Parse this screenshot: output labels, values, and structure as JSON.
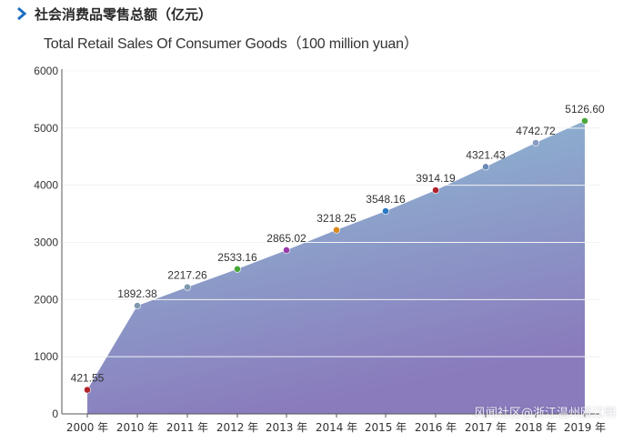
{
  "header": {
    "title_cn": "社会消费品零售总额（亿元）",
    "title_en": "Total Retail Sales Of Consumer Goods（100 million yuan）"
  },
  "watermark": "风闻社区@浙江温州瓯江明",
  "colors": {
    "arrow": "#1f6fc4",
    "area_top": "#8ec3d6",
    "area_bottom": "#8a7bbd",
    "grid": "#ffffff",
    "axis": "#555555"
  },
  "chart_data": {
    "type": "area",
    "title": "Total Retail Sales Of Consumer Goods（100 million yuan）",
    "categories": [
      "2000 年",
      "2010 年",
      "2011 年",
      "2012 年",
      "2013 年",
      "2014 年",
      "2015 年",
      "2016 年",
      "2017 年",
      "2018 年",
      "2019 年"
    ],
    "values": [
      421.55,
      1892.38,
      2217.26,
      2533.16,
      2865.02,
      3218.25,
      3548.16,
      3914.19,
      4321.43,
      4742.72,
      5126.6
    ],
    "labels": [
      "421.55",
      "1892.38",
      "2217.26",
      "2533.16",
      "2865.02",
      "3218.25",
      "3548.16",
      "3914.19",
      "4321.43",
      "4742.72",
      "5126.60"
    ],
    "point_colors": [
      "#b0232b",
      "#7e9ab0",
      "#7e9ab0",
      "#4aa63a",
      "#9a3aa8",
      "#d98a1c",
      "#2c78c4",
      "#b0232b",
      "#6a8ab6",
      "#8a9ac0",
      "#4aa63a"
    ],
    "yticks": [
      0,
      1000,
      2000,
      3000,
      4000,
      5000,
      6000
    ],
    "ylim": [
      0,
      6000
    ],
    "xlabel": "",
    "ylabel": ""
  }
}
